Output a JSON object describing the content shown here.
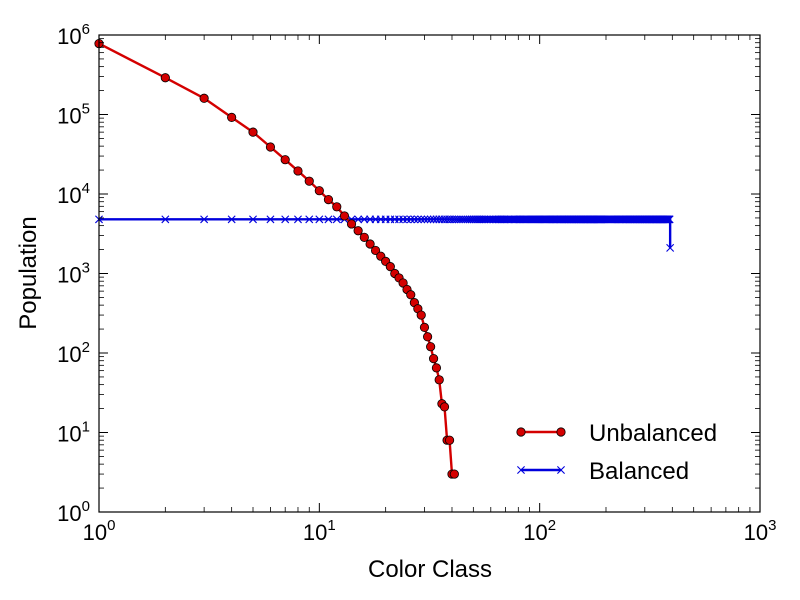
{
  "chart_data": {
    "type": "line",
    "title": "",
    "xlabel": "Color Class",
    "ylabel": "Population",
    "xscale": "log",
    "yscale": "log",
    "xlim": [
      1,
      1000
    ],
    "ylim": [
      1,
      1000000
    ],
    "x_ticks": [
      {
        "value": 1,
        "base": "10",
        "exp": "0"
      },
      {
        "value": 10,
        "base": "10",
        "exp": "1"
      },
      {
        "value": 100,
        "base": "10",
        "exp": "2"
      },
      {
        "value": 1000,
        "base": "10",
        "exp": "3"
      }
    ],
    "y_ticks": [
      {
        "value": 1,
        "base": "10",
        "exp": "0"
      },
      {
        "value": 10,
        "base": "10",
        "exp": "1"
      },
      {
        "value": 100,
        "base": "10",
        "exp": "2"
      },
      {
        "value": 1000,
        "base": "10",
        "exp": "3"
      },
      {
        "value": 10000,
        "base": "10",
        "exp": "4"
      },
      {
        "value": 100000,
        "base": "10",
        "exp": "5"
      },
      {
        "value": 1000000,
        "base": "10",
        "exp": "6"
      }
    ],
    "grid": false,
    "legend_position": "lower-right",
    "series": [
      {
        "name": "Unbalanced",
        "color": "#d40000",
        "marker": "circle",
        "x": [
          1,
          2,
          3,
          4,
          5,
          6,
          7,
          8,
          9,
          10,
          11,
          12,
          13,
          14,
          15,
          16,
          17,
          18,
          19,
          20,
          21,
          22,
          23,
          24,
          25,
          26,
          27,
          28,
          29,
          30,
          31,
          32,
          33,
          34,
          35,
          36,
          37,
          38,
          39,
          40,
          41
        ],
        "y": [
          780000,
          290000,
          160000,
          92000,
          60000,
          39000,
          27000,
          19500,
          14500,
          11000,
          8500,
          6900,
          5300,
          4200,
          3450,
          2850,
          2350,
          1950,
          1650,
          1420,
          1220,
          1000,
          880,
          760,
          630,
          540,
          430,
          360,
          300,
          210,
          160,
          120,
          85,
          65,
          46,
          23,
          21,
          8,
          8,
          3,
          3
        ]
      },
      {
        "name": "Balanced",
        "color": "#0000dd",
        "marker": "x",
        "dense_x_range": [
          1,
          391
        ],
        "dense_y_value": 4800,
        "last_point": {
          "x": 391,
          "y": 2100
        }
      }
    ]
  }
}
